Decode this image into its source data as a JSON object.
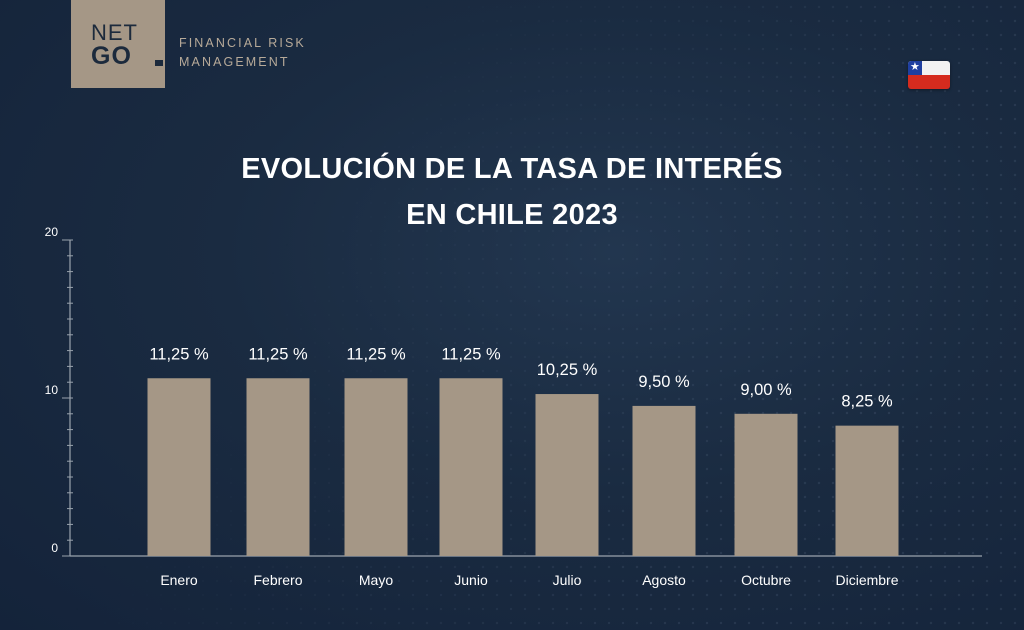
{
  "logo": {
    "line1": "NET",
    "line2": "GO"
  },
  "tagline": {
    "line1": "FINANCIAL RISK",
    "line2": "MANAGEMENT"
  },
  "flag": {
    "name": "chile-flag-icon",
    "colors": {
      "white": "#f2f2f2",
      "red": "#d52b1e",
      "blue": "#1f3fa0"
    }
  },
  "title": {
    "line1": "EVOLUCIÓN DE LA TASA DE INTERÉS",
    "line2": "EN CHILE 2023"
  },
  "colors": {
    "bar": "#a59786",
    "axis": "#9aa3ad",
    "text": "#ffffff",
    "brand": "#a59786"
  },
  "chart_data": {
    "type": "bar",
    "title": "EVOLUCIÓN DE LA TASA DE INTERÉS EN CHILE 2023",
    "categories": [
      "Enero",
      "Febrero",
      "Mayo",
      "Junio",
      "Julio",
      "Agosto",
      "Octubre",
      "Diciembre"
    ],
    "values": [
      11.25,
      11.25,
      11.25,
      11.25,
      10.25,
      9.5,
      9.0,
      8.25
    ],
    "data_labels": [
      "11,25 %",
      "11,25 %",
      "11,25 %",
      "11,25 %",
      "10,25 %",
      "9,50 %",
      "9,00 %",
      "8,25 %"
    ],
    "yticks": [
      "0",
      "10",
      "20"
    ],
    "ytick_values": [
      0,
      10,
      20
    ],
    "ylim": [
      0,
      20
    ],
    "xlabel": "",
    "ylabel": "",
    "grid": false,
    "legend": "none"
  }
}
